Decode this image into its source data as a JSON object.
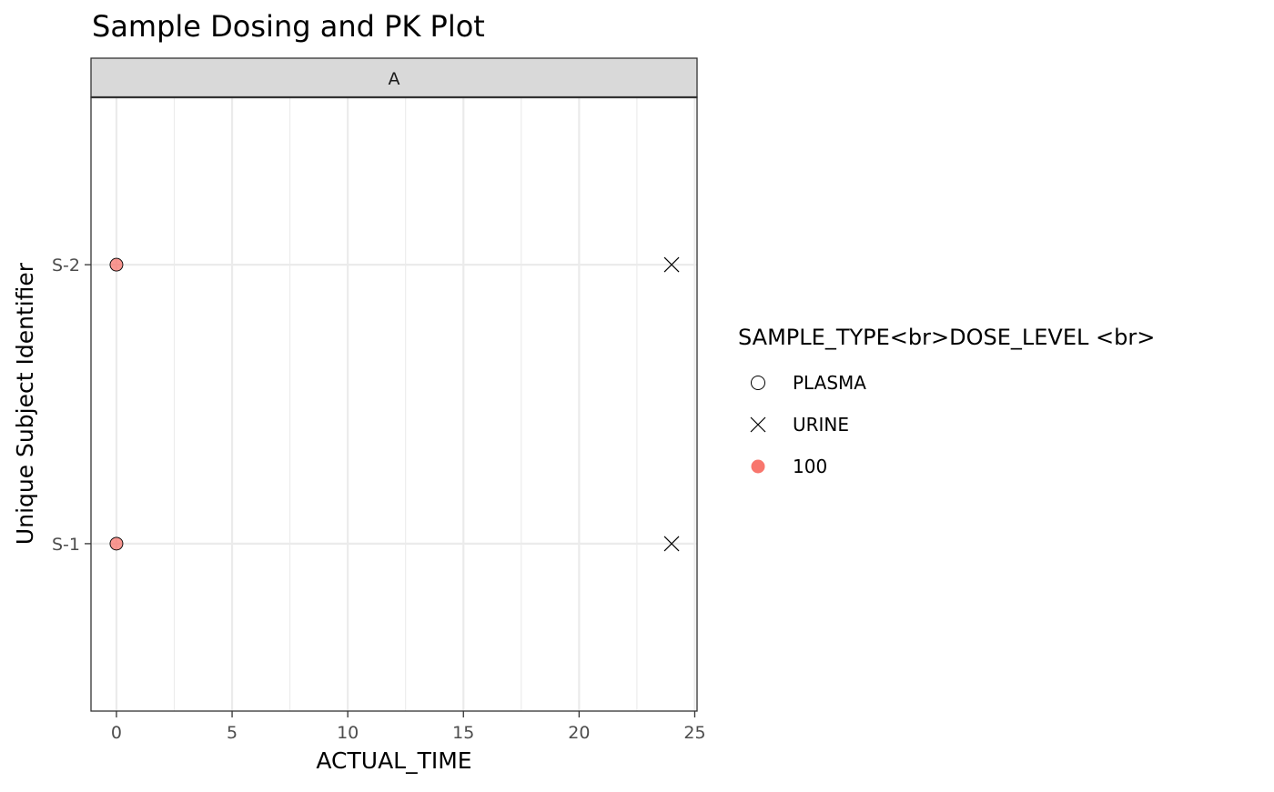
{
  "chart_data": {
    "type": "scatter",
    "title": "Sample Dosing and PK Plot",
    "facet": "A",
    "xlabel": "ACTUAL_TIME",
    "ylabel": "Unique Subject Identifier",
    "xlim": [
      -1.1,
      25.1
    ],
    "x_ticks": [
      0,
      5,
      10,
      15,
      20,
      25
    ],
    "categories": [
      "S-1",
      "S-2"
    ],
    "grid": true,
    "legend_position": "right",
    "legend": {
      "title": "SAMPLE_TYPE<br>DOSE_LEVEL <br>",
      "items": [
        {
          "label": "PLASMA",
          "shape": "circle-open"
        },
        {
          "label": "URINE",
          "shape": "cross"
        },
        {
          "label": "100",
          "shape": "circle-filled",
          "color": "#F8766D"
        }
      ]
    },
    "series": [
      {
        "sample_type": "PLASMA",
        "dose_level": "100",
        "fill": "#F8766D",
        "shape": "circle",
        "points": [
          {
            "x": 0,
            "subject": "S-1"
          },
          {
            "x": 0,
            "subject": "S-2"
          }
        ]
      },
      {
        "sample_type": "URINE",
        "shape": "cross",
        "points": [
          {
            "x": 24,
            "subject": "S-1"
          },
          {
            "x": 24,
            "subject": "S-2"
          }
        ]
      }
    ]
  }
}
